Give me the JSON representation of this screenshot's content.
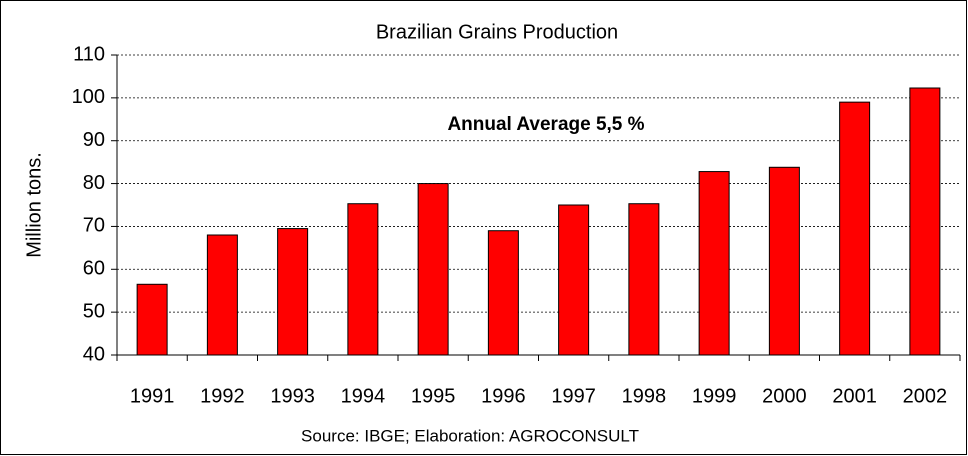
{
  "chart_data": {
    "type": "bar",
    "title": "Brazilian Grains Production",
    "annotation": "Annual Average 5,5 %",
    "y_label": "Million tons.",
    "source": "Source: IBGE; Elaboration: AGROCONSULT",
    "categories": [
      "1991",
      "1992",
      "1993",
      "1994",
      "1995",
      "1996",
      "1997",
      "1998",
      "1999",
      "2000",
      "2001",
      "2002"
    ],
    "values": [
      56.5,
      68,
      69.5,
      75.3,
      80,
      69,
      75,
      75.3,
      82.8,
      83.8,
      99,
      102.3
    ],
    "color": "#ff0000",
    "ylim": [
      40,
      110
    ],
    "yticks": [
      40,
      50,
      60,
      70,
      80,
      90,
      100,
      110
    ],
    "grid": true
  }
}
